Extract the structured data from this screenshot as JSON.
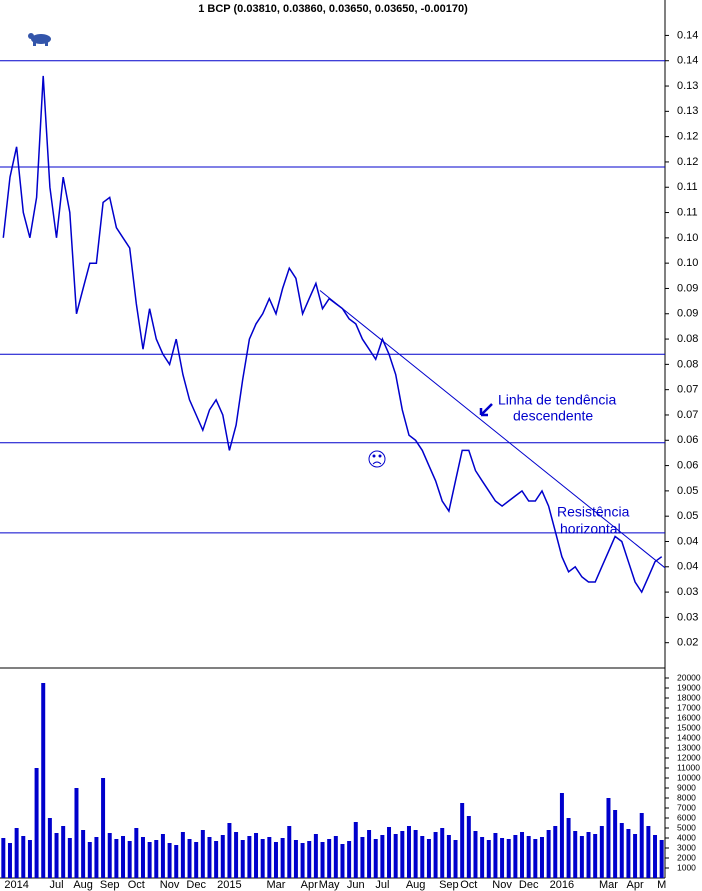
{
  "chart_data": [
    {
      "type": "line",
      "title": "1 BCP (0.03810, 0.03860, 0.03650, 0.03650, -0.00170)",
      "categories": [
        null,
        null,
        "2014",
        null,
        null,
        null,
        null,
        null,
        "Jul",
        null,
        null,
        null,
        "Aug",
        null,
        null,
        null,
        "Sep",
        null,
        null,
        null,
        "Oct",
        null,
        null,
        null,
        null,
        "Nov",
        null,
        null,
        null,
        "Dec",
        null,
        null,
        null,
        null,
        "2015",
        null,
        null,
        null,
        null,
        null,
        null,
        "Mar",
        null,
        null,
        null,
        null,
        "Apr",
        null,
        null,
        "May",
        null,
        null,
        null,
        "Jun",
        null,
        null,
        null,
        "Jul",
        null,
        null,
        null,
        null,
        "Aug",
        null,
        null,
        null,
        null,
        "Sep",
        null,
        null,
        "Oct",
        null,
        null,
        null,
        null,
        "Nov",
        null,
        null,
        null,
        "Dec",
        null,
        null,
        null,
        null,
        "2016",
        null,
        null,
        null,
        null,
        null,
        null,
        "Mar",
        null,
        null,
        null,
        "Apr",
        null,
        null,
        null,
        "M"
      ],
      "series": [
        {
          "name": "BCP",
          "color": "#0000cc",
          "values": [
            0.1,
            0.112,
            0.118,
            0.105,
            0.1,
            0.108,
            0.132,
            0.11,
            0.1,
            0.112,
            0.105,
            0.085,
            0.09,
            0.095,
            0.095,
            0.107,
            0.108,
            0.102,
            0.1,
            0.098,
            0.087,
            0.078,
            0.086,
            0.08,
            0.077,
            0.075,
            0.08,
            0.073,
            0.068,
            0.065,
            0.062,
            0.066,
            0.068,
            0.065,
            0.058,
            0.063,
            0.072,
            0.08,
            0.083,
            0.085,
            0.088,
            0.085,
            0.09,
            0.094,
            0.092,
            0.085,
            0.088,
            0.091,
            0.086,
            0.088,
            0.087,
            0.086,
            0.084,
            0.083,
            0.08,
            0.078,
            0.076,
            0.08,
            0.077,
            0.073,
            0.066,
            0.061,
            0.06,
            0.058,
            0.055,
            0.052,
            0.048,
            0.046,
            0.052,
            0.058,
            0.058,
            0.054,
            0.052,
            0.05,
            0.048,
            0.047,
            0.048,
            0.049,
            0.05,
            0.048,
            0.048,
            0.05,
            0.047,
            0.042,
            0.037,
            0.034,
            0.035,
            0.033,
            0.032,
            0.032,
            0.035,
            0.038,
            0.041,
            0.04,
            0.036,
            0.032,
            0.03,
            0.033,
            0.036,
            0.037
          ]
        }
      ],
      "ylim": [
        0.015,
        0.147
      ],
      "yticks": [
        {
          "value": 0.02,
          "label": "0.02"
        },
        {
          "value": 0.025,
          "label": "0.03"
        },
        {
          "value": 0.03,
          "label": "0.03"
        },
        {
          "value": 0.035,
          "label": "0.04"
        },
        {
          "value": 0.04,
          "label": "0.04"
        },
        {
          "value": 0.045,
          "label": "0.05"
        },
        {
          "value": 0.05,
          "label": "0.05"
        },
        {
          "value": 0.055,
          "label": "0.06"
        },
        {
          "value": 0.06,
          "label": "0.06"
        },
        {
          "value": 0.065,
          "label": "0.07"
        },
        {
          "value": 0.07,
          "label": "0.07"
        },
        {
          "value": 0.075,
          "label": "0.08"
        },
        {
          "value": 0.08,
          "label": "0.08"
        },
        {
          "value": 0.085,
          "label": "0.09"
        },
        {
          "value": 0.09,
          "label": "0.09"
        },
        {
          "value": 0.095,
          "label": "0.10"
        },
        {
          "value": 0.1,
          "label": "0.10"
        },
        {
          "value": 0.105,
          "label": "0.11"
        },
        {
          "value": 0.11,
          "label": "0.11"
        },
        {
          "value": 0.115,
          "label": "0.12"
        },
        {
          "value": 0.12,
          "label": "0.12"
        },
        {
          "value": 0.125,
          "label": "0.13"
        },
        {
          "value": 0.13,
          "label": "0.13"
        },
        {
          "value": 0.135,
          "label": "0.14"
        },
        {
          "value": 0.14,
          "label": "0.14"
        }
      ],
      "horizontal_lines": [
        0.135,
        0.114,
        0.077,
        0.0595,
        0.0417
      ],
      "trendline": [
        0.0896,
        0.0348
      ],
      "annotations": [
        "Linha de tendência",
        "descendente",
        "Resistência",
        "horizontal"
      ]
    },
    {
      "type": "bar",
      "series": [
        {
          "name": "Volume",
          "color": "#0000cc",
          "values": [
            4000,
            3500,
            5000,
            4200,
            3800,
            11000,
            19500,
            6000,
            4500,
            5200,
            4000,
            9000,
            4800,
            3600,
            4100,
            10000,
            4500,
            3900,
            4200,
            3700,
            5000,
            4100,
            3600,
            3800,
            4400,
            3500,
            3300,
            4600,
            3900,
            3600,
            4800,
            4100,
            3700,
            4300,
            5500,
            4600,
            3800,
            4200,
            4500,
            3900,
            4100,
            3600,
            4000,
            5200,
            3800,
            3500,
            3700,
            4400,
            3600,
            3900,
            4200,
            3400,
            3700,
            5600,
            4100,
            4800,
            3900,
            4300,
            5100,
            4400,
            4700,
            5200,
            4800,
            4200,
            3900,
            4600,
            5000,
            4300,
            3800,
            7500,
            6200,
            4700,
            4100,
            3800,
            4500,
            4000,
            3900,
            4300,
            4600,
            4200,
            3900,
            4100,
            4800,
            5200,
            8500,
            6000,
            4700,
            4200,
            4600,
            4400,
            5200,
            8000,
            6800,
            5500,
            4900,
            4400,
            6500,
            5200,
            4300,
            3800
          ]
        }
      ],
      "ylim": [
        0,
        20600
      ],
      "yticks": [
        1000,
        2000,
        3000,
        4000,
        5000,
        6000,
        7000,
        8000,
        9000,
        10000,
        11000,
        12000,
        13000,
        14000,
        15000,
        16000,
        17000,
        18000,
        19000,
        20000
      ]
    }
  ]
}
